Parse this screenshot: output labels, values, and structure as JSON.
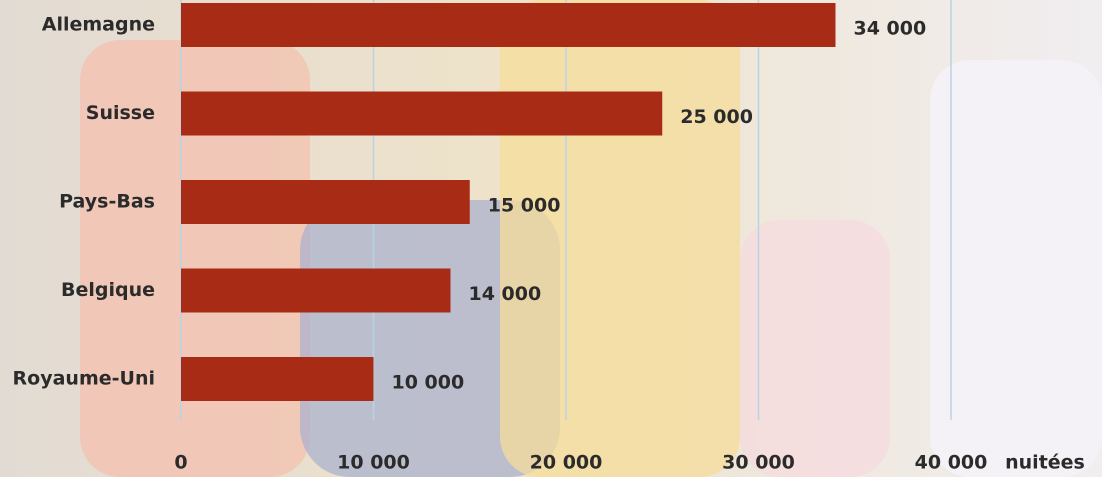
{
  "chart_data": {
    "type": "bar",
    "orientation": "horizontal",
    "categories": [
      "Allemagne",
      "Suisse",
      "Pays-Bas",
      "Belgique",
      "Royaume-Uni"
    ],
    "values": [
      34000,
      25000,
      15000,
      14000,
      10000
    ],
    "value_labels": [
      "34 000",
      "25 000",
      "15 000",
      "14 000",
      "10 000"
    ],
    "color": "#a82c15",
    "xlim": [
      0,
      40000
    ],
    "xticks": [
      0,
      {
        "value": 10000,
        "label": "10 000"
      },
      {
        "value": 20000,
        "label": "20 000"
      },
      {
        "value": 30000,
        "label": "30 000"
      },
      {
        "value": 40000,
        "label": "40 000"
      }
    ],
    "xlabel": "nuitées",
    "grid": true
  }
}
